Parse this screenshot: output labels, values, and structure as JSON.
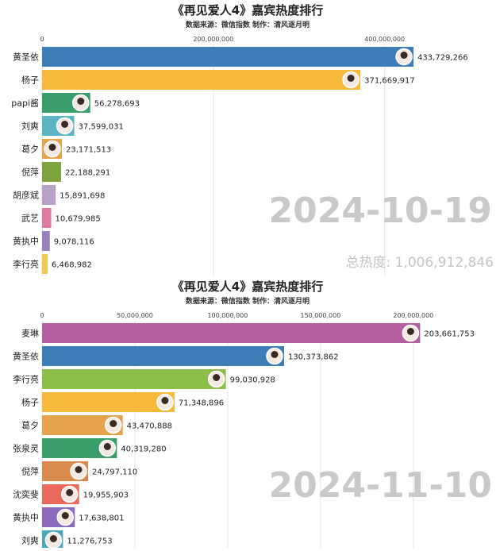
{
  "charts_meta": [
    {
      "title": "《再见爱人4》嘉宾热度排行",
      "subtitle": "数据来源：微信指数    制作：清风逐月明",
      "date": "2024-10-19",
      "total_label": "总热度: 1,006,912,846"
    },
    {
      "title": "《再见爱人4》嘉宾热度排行",
      "subtitle": "数据来源：微信指数    制作：清风逐月明",
      "date": "2024-11-10",
      "total_label": ""
    }
  ],
  "chart_data": [
    {
      "type": "bar",
      "orientation": "horizontal",
      "title": "《再见爱人4》嘉宾热度排行",
      "subtitle": "数据来源：微信指数    制作：清风逐月明",
      "date": "2024-10-19",
      "total": "总热度: 1,006,912,846",
      "xlim": [
        0,
        480000000
      ],
      "xticks": [
        0,
        200000000,
        400000000
      ],
      "xtick_labels": [
        "0",
        "200,000,000",
        "400,000,000"
      ],
      "grid": true,
      "categories": [
        "黄圣依",
        "杨子",
        "papi酱",
        "刘爽",
        "葛夕",
        "倪萍",
        "胡彦斌",
        "武艺",
        "黄执中",
        "李行亮"
      ],
      "values": [
        433729266,
        371669917,
        56278693,
        37599031,
        23171513,
        22188291,
        15891698,
        10679985,
        9078116,
        6468982
      ],
      "value_labels": [
        "433,729,266",
        "371,669,917",
        "56,278,693",
        "37,599,031",
        "23,171,513",
        "22,188,291",
        "15,891,698",
        "10,679,985",
        "9,078,116",
        "6,468,982"
      ],
      "colors": [
        "#3d7eb9",
        "#f6b93b",
        "#3a9e6a",
        "#5bb5c3",
        "#e7a34b",
        "#7da23e",
        "#b8a0c8",
        "#e07aa3",
        "#9a7fbf",
        "#f2c94c"
      ]
    },
    {
      "type": "bar",
      "orientation": "horizontal",
      "title": "《再见爱人4》嘉宾热度排行",
      "subtitle": "数据来源：微信指数    制作：清风逐月明",
      "date": "2024-11-10",
      "xlim": [
        0,
        230000000
      ],
      "xticks": [
        0,
        50000000,
        100000000,
        150000000,
        200000000
      ],
      "xtick_labels": [
        "0",
        "50,000,000",
        "100,000,000",
        "150,000,000",
        "200,000,000"
      ],
      "grid": true,
      "categories": [
        "麦琳",
        "黄圣依",
        "李行亮",
        "杨子",
        "葛夕",
        "张泉灵",
        "倪萍",
        "沈奕斐",
        "黄执中",
        "刘爽"
      ],
      "values": [
        203661753,
        130373862,
        99030928,
        71348896,
        43470888,
        40319280,
        24797110,
        19955903,
        17638801,
        11276753
      ],
      "value_labels": [
        "203,661,753",
        "130,373,862",
        "99,030,928",
        "71,348,896",
        "43,470,888",
        "40,319,280",
        "24,797,110",
        "19,955,903",
        "17,638,801",
        "11,276,753"
      ],
      "colors": [
        "#b55fa0",
        "#3d7eb9",
        "#8bbf4a",
        "#f6b93b",
        "#e7a34b",
        "#3a9e6a",
        "#d98a4c",
        "#e96a5a",
        "#8c6bbd",
        "#4aa8b8"
      ]
    }
  ]
}
